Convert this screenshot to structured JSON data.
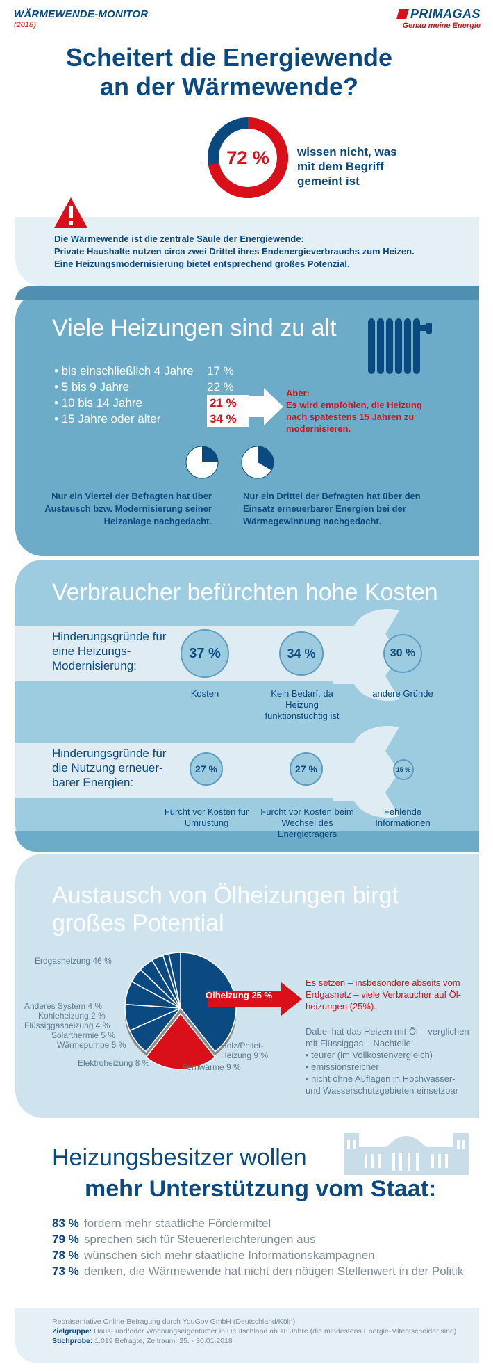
{
  "header": {
    "monitor_title": "WÄRMEWENDE-MONITOR",
    "monitor_year": "(2018)",
    "brand_name": "PRIMAGAS",
    "brand_tagline": "Genau meine Energie"
  },
  "hero": {
    "title_line1": "Scheitert die Energiewende",
    "title_line2": "an der Wärmewende?",
    "donut_value": "72 %",
    "donut_fraction": 0.72,
    "donut_text": "wissen nicht, was mit dem Begriff gemeint ist"
  },
  "intro": {
    "line1": "Die Wärmewende ist die zentrale Säule der Energiewende:",
    "line2": "Private Haushalte nutzen circa zwei Drittel ihres Endenergieverbrauchs zum Heizen.",
    "line3": "Eine Heizungsmodernisierung bietet entsprechend großes Potenzial."
  },
  "old_heating": {
    "title": "Viele Heizungen sind zu alt",
    "rows": [
      {
        "label": "• bis einschließlich 4 Jahre",
        "value": "17 %"
      },
      {
        "label": "• 5 bis 9 Jahre",
        "value": "22 %"
      },
      {
        "label": "• 10 bis 14 Jahre",
        "value": "21 %"
      },
      {
        "label": "• 15 Jahre oder älter",
        "value": "34 %"
      }
    ],
    "aber_title": "Aber:",
    "aber_text": "Es wird empfohlen, die Heizung nach spätestens 15 Jahren zu modernisieren.",
    "pie1_fraction": 0.25,
    "pie2_fraction": 0.333,
    "note_left": "Nur ein Viertel der Befragten hat über Austausch bzw. Modernisierung seiner Heizanlage nachgedacht.",
    "note_right": "Nur ein Drittel der Befragten hat über den Einsatz erneuerbarer Energien bei der Wärmegewinnung nachgedacht."
  },
  "costs": {
    "title": "Verbraucher befürchten hohe Kosten",
    "group1": {
      "label": "Hinderungsgründe für eine Heizungs-Modernisierung:",
      "items": [
        {
          "value": "37 %",
          "caption": "Kosten"
        },
        {
          "value": "34 %",
          "caption": "Kein Bedarf, da Heizung funktionstüchtig ist"
        },
        {
          "value": "30 %",
          "caption": "andere Gründe"
        }
      ]
    },
    "group2": {
      "label": "Hinderungsgründe für die Nutzung erneuer-barer Energien:",
      "items": [
        {
          "value": "27 %",
          "caption": "Furcht vor Kosten für Umrüstung"
        },
        {
          "value": "27 %",
          "caption": "Furcht vor Kosten beim Wechsel des Energieträgers"
        },
        {
          "value": "15 %",
          "caption": "Fehlende Informationen"
        }
      ]
    }
  },
  "oil": {
    "title": "Austausch von Ölheizungen birgt großes Potential",
    "chart_data": {
      "type": "pie",
      "slices": [
        {
          "label": "Erdgasheizung",
          "value": 46
        },
        {
          "label": "Ölheizung",
          "value": 25
        },
        {
          "label": "Holz/Pellet-Heizung",
          "value": 9
        },
        {
          "label": "Fernwärme",
          "value": 9
        },
        {
          "label": "Elektroheizung",
          "value": 8
        },
        {
          "label": "Wärmepumpe",
          "value": 5
        },
        {
          "label": "Solarthermie",
          "value": 5
        },
        {
          "label": "Flüssiggasheizung",
          "value": 4
        },
        {
          "label": "Kohleheizung",
          "value": 2
        },
        {
          "label": "Anderes System",
          "value": 4
        }
      ],
      "labels": {
        "erdgas": "Erdgasheizung 46 %",
        "oel": "Ölheizung 25 %",
        "holz1": "Holz/Pellet-",
        "holz2": "Heizung 9 %",
        "fern": "Fernwärme 9 %",
        "elektro": "Elektroheizung 8 %",
        "waerme": "Wärmepumpe 5 %",
        "solar": "Solarthermie 5 %",
        "fluessig": "Flüssiggasheizung 4 %",
        "kohle": "Kohleheizung 2 %",
        "anderes": "Anderes System 4 %"
      }
    },
    "text_red": "Es setzen – insbesondere abseits vom Erdgasnetz – viele Verbraucher auf Öl-heizungen (25%).",
    "text_intro": "Dabei hat das Heizen mit Öl – verglichen mit Flüssiggas – Nachteile:",
    "bullets": [
      "• teurer (im Vollkostenvergleich)",
      "• emissionsreicher",
      "• nicht ohne Auflagen in Hochwasser- und Wasserschutzgebieten einsetzbar"
    ]
  },
  "state": {
    "title_line1": "Heizungsbesitzer wollen",
    "title_line2": "mehr Unterstützung vom Staat:",
    "rows": [
      {
        "pct": "83 %",
        "text": "fordern mehr staatliche Fördermittel"
      },
      {
        "pct": "79 %",
        "text": "sprechen sich für Steuererleichterungen aus"
      },
      {
        "pct": "78 %",
        "text": "wünschen sich mehr staatliche Informationskampagnen"
      },
      {
        "pct": "73 %",
        "text": "denken, die Wärmewende hat nicht den nötigen Stellenwert in der Politik"
      }
    ]
  },
  "footer": {
    "line1": "Repräsentative Online-Befragung durch YouGov GmbH (Deutschland/Köln)",
    "zielgruppe_label": "Zielgruppe:",
    "zielgruppe": "Haus- und/oder Wohnungseigentümer in Deutschland ab 18 Jahre (die mindestens Energie-Mitentscheider sind)",
    "stichprobe_label": "Stichprobe:",
    "stichprobe": "1.019 Befragte, Zeitraum: 25. - 30.01.2018"
  },
  "colors": {
    "navy": "#0b4a80",
    "red": "#d9101a",
    "panel_light": "#e5f0f6",
    "panel_mid": "#6dacc9",
    "panel_soft": "#9dcbe0"
  }
}
